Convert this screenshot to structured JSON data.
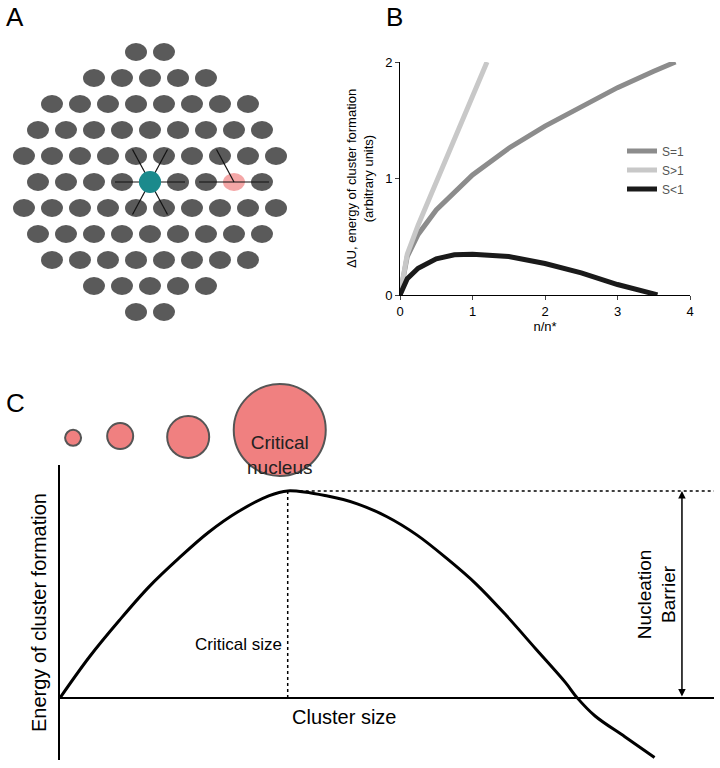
{
  "panel_labels": [
    "A",
    "B",
    "C"
  ],
  "chart_data": [
    {
      "type": "line",
      "xlabel": "n/n*",
      "ylabel": [
        "ΔU, energy of cluster formation",
        "(arbitrary units)"
      ],
      "xlim": [
        0,
        4
      ],
      "xticks": [
        0,
        1,
        2,
        3,
        4
      ],
      "ylim": [
        0,
        2
      ],
      "yticks": [
        0,
        1,
        2
      ],
      "grid": false,
      "legend": "right",
      "series": [
        {
          "name": "S=1",
          "color": "#8c8c8c",
          "x": [
            0,
            0.1,
            0.25,
            0.5,
            1,
            1.5,
            2,
            2.5,
            3,
            3.5,
            3.8
          ],
          "values": [
            0,
            0.33,
            0.52,
            0.73,
            1.03,
            1.26,
            1.45,
            1.62,
            1.78,
            1.92,
            2.0
          ]
        },
        {
          "name": "S>1",
          "color": "#c8c8c8",
          "x": [
            0,
            0.1,
            0.25,
            0.5,
            0.75,
            1,
            1.2
          ],
          "values": [
            0,
            0.35,
            0.6,
            0.97,
            1.35,
            1.72,
            2.0
          ]
        },
        {
          "name": "S<1",
          "color": "#1a1a1a",
          "x": [
            0,
            0.1,
            0.25,
            0.5,
            0.75,
            1,
            1.5,
            2,
            2.5,
            3,
            3.5,
            3.55
          ],
          "values": [
            0,
            0.14,
            0.23,
            0.31,
            0.345,
            0.35,
            0.33,
            0.27,
            0.19,
            0.09,
            0.01,
            0
          ]
        }
      ]
    },
    {
      "type": "line",
      "xlabel": "Cluster size",
      "ylabel": "Energy of cluster formation",
      "xlim": [
        0,
        11
      ],
      "ylim": [
        -1.2,
        4.5
      ],
      "grid": false,
      "tick_labels": false,
      "critical_size": 3.83,
      "barrier": 4.0,
      "critical_size_label": "Critical size",
      "critical_nucleus_label": [
        "Critical",
        "nucleus"
      ],
      "barrier_label": [
        "Nucleation",
        "Barrier"
      ],
      "series": [
        {
          "color": "#000000",
          "x": [
            0,
            0.5,
            1,
            1.5,
            2,
            2.5,
            3,
            3.5,
            3.83,
            4.5,
            5,
            5.5,
            6,
            6.5,
            7,
            7.5,
            8,
            8.5,
            8.7,
            9,
            9.5,
            10
          ],
          "values": [
            0,
            0.8,
            1.5,
            2.15,
            2.7,
            3.2,
            3.6,
            3.9,
            4.0,
            3.9,
            3.75,
            3.5,
            3.15,
            2.7,
            2.2,
            1.6,
            0.95,
            0.3,
            0,
            -0.35,
            -0.75,
            -1.15
          ]
        }
      ]
    }
  ]
}
